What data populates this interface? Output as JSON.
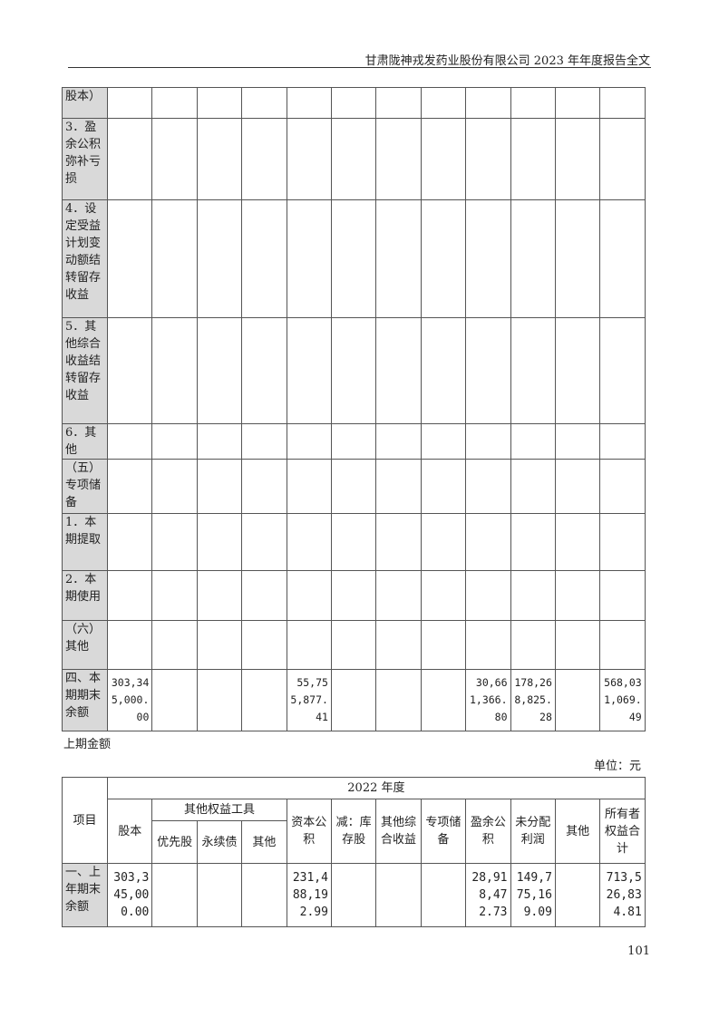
{
  "header": {
    "title": "甘肃陇神戎发药业股份有限公司 2023 年年度报告全文"
  },
  "top_table": {
    "rows": [
      {
        "label": "股本）",
        "values": [
          "",
          "",
          "",
          "",
          "",
          "",
          "",
          "",
          "",
          "",
          "",
          ""
        ]
      },
      {
        "label": "3．盈余公积弥补亏损",
        "values": [
          "",
          "",
          "",
          "",
          "",
          "",
          "",
          "",
          "",
          "",
          "",
          ""
        ]
      },
      {
        "label": "4．设定受益计划变动额结转留存收益",
        "values": [
          "",
          "",
          "",
          "",
          "",
          "",
          "",
          "",
          "",
          "",
          "",
          ""
        ]
      },
      {
        "label": "5．其他综合收益结转留存收益",
        "values": [
          "",
          "",
          "",
          "",
          "",
          "",
          "",
          "",
          "",
          "",
          "",
          ""
        ]
      },
      {
        "label": "6．其他",
        "values": [
          "",
          "",
          "",
          "",
          "",
          "",
          "",
          "",
          "",
          "",
          "",
          ""
        ]
      },
      {
        "label": "（五）专项储备",
        "values": [
          "",
          "",
          "",
          "",
          "",
          "",
          "",
          "",
          "",
          "",
          "",
          ""
        ]
      },
      {
        "label": "1．本期提取",
        "values": [
          "",
          "",
          "",
          "",
          "",
          "",
          "",
          "",
          "",
          "",
          "",
          ""
        ]
      },
      {
        "label": "2．本期使用",
        "values": [
          "",
          "",
          "",
          "",
          "",
          "",
          "",
          "",
          "",
          "",
          "",
          ""
        ]
      },
      {
        "label": "（六）其他",
        "values": [
          "",
          "",
          "",
          "",
          "",
          "",
          "",
          "",
          "",
          "",
          "",
          ""
        ]
      },
      {
        "label": "四、本期期末余额",
        "values": [
          "303,345,000.00",
          "",
          "",
          "",
          "55,755,877.41",
          "",
          "",
          "",
          "30,661,366.80",
          "178,268,825.28",
          "",
          "568,031,069.49"
        ]
      }
    ]
  },
  "section_label": "上期金额",
  "unit": "单位：元",
  "bottom_table": {
    "year": "2022 年度",
    "item": "项目",
    "other_equity": "其他权益工具",
    "columns": [
      "股本",
      "优先股",
      "永续债",
      "其他",
      "资本公积",
      "减：库存股",
      "其他综合收益",
      "专项储备",
      "盈余公积",
      "未分配利润",
      "其他",
      "所有者权益合计"
    ],
    "rows": [
      {
        "label": "一、上年期末余额",
        "values": [
          "303,345,000.00",
          "",
          "",
          "",
          "231,488,192.99",
          "",
          "",
          "",
          "28,918,472.73",
          "149,775,169.09",
          "",
          "713,526,834.81"
        ]
      }
    ]
  },
  "page_number": "101"
}
